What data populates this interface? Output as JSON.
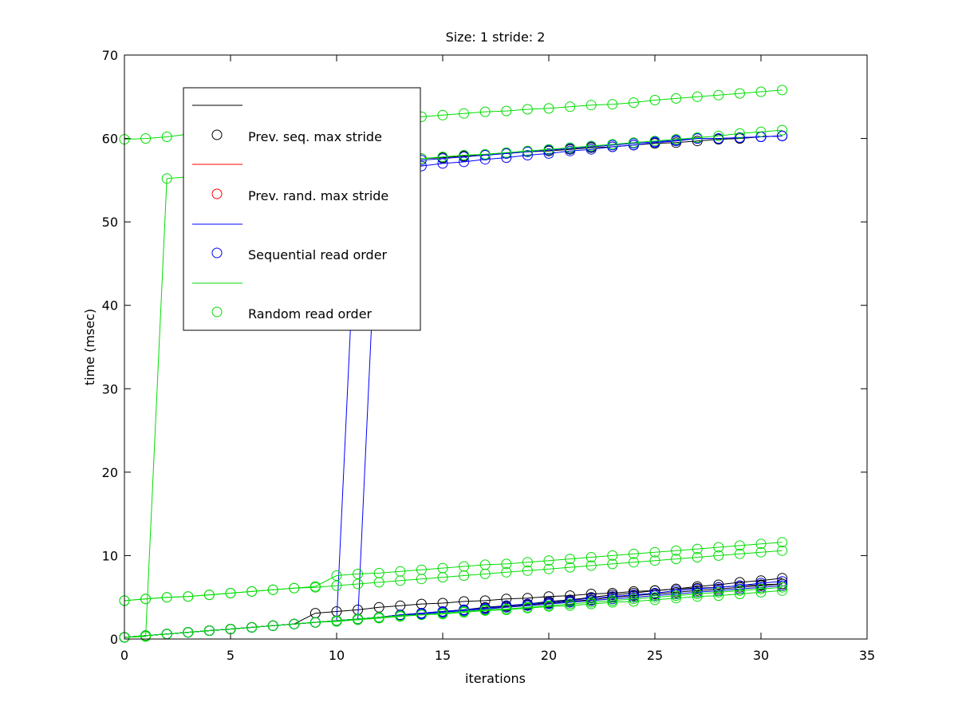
{
  "chart_data": {
    "type": "line",
    "title": "Size: 1 stride: 2",
    "xlabel": "iterations",
    "ylabel": "time (msec)",
    "xlim": [
      0,
      35
    ],
    "ylim": [
      0,
      70
    ],
    "xticks": [
      0,
      5,
      10,
      15,
      20,
      25,
      30,
      35
    ],
    "yticks": [
      0,
      10,
      20,
      30,
      40,
      50,
      60,
      70
    ],
    "grid": false,
    "legend_position": "upper-left",
    "legend": [
      {
        "kind": "line",
        "label": "",
        "color": "#000000"
      },
      {
        "kind": "marker",
        "label": "Prev. seq. max stride",
        "color": "#000000"
      },
      {
        "kind": "line",
        "label": "",
        "color": "#ff0000"
      },
      {
        "kind": "marker",
        "label": "Prev. rand. max stride",
        "color": "#ff0000"
      },
      {
        "kind": "line",
        "label": "",
        "color": "#0000ff"
      },
      {
        "kind": "marker",
        "label": "Sequential read order",
        "color": "#0000ff"
      },
      {
        "kind": "line",
        "label": "",
        "color": "#00dd00"
      },
      {
        "kind": "marker",
        "label": "Random read order",
        "color": "#00dd00"
      }
    ],
    "x": [
      0,
      1,
      2,
      3,
      4,
      5,
      6,
      7,
      8,
      9,
      10,
      11,
      12,
      13,
      14,
      15,
      16,
      17,
      18,
      19,
      20,
      21,
      22,
      23,
      24,
      25,
      26,
      27,
      28,
      29,
      30,
      31
    ],
    "series": [
      {
        "color": "#000000",
        "values": [
          0.2,
          0.4,
          0.6,
          0.8,
          1.0,
          1.2,
          1.4,
          1.6,
          1.8,
          2.0,
          2.2,
          2.4,
          2.6,
          2.9,
          3.1,
          3.3,
          3.5,
          3.8,
          4.0,
          4.2,
          4.5,
          4.7,
          5.0,
          5.3,
          5.5,
          5.8,
          6.0,
          6.3,
          6.5,
          6.8,
          7.0,
          7.3
        ]
      },
      {
        "color": "#000000",
        "values": [
          0.2,
          0.4,
          0.6,
          0.8,
          1.0,
          1.2,
          1.4,
          1.6,
          1.8,
          3.1,
          3.3,
          3.5,
          3.8,
          4.0,
          4.2,
          4.3,
          4.5,
          4.6,
          4.8,
          4.9,
          5.1,
          5.2,
          5.4,
          5.5,
          5.7,
          5.8,
          6.0,
          6.1,
          6.2,
          6.4,
          6.5,
          6.6
        ]
      },
      {
        "color": "#000000",
        "values": [
          0.2,
          0.4,
          0.6,
          0.8,
          1.0,
          1.2,
          1.4,
          1.6,
          1.8,
          2.0,
          2.2,
          2.4,
          2.6,
          2.9,
          3.1,
          3.3,
          3.5,
          3.7,
          3.9,
          4.1,
          4.3,
          4.5,
          4.7,
          5.0,
          5.2,
          5.4,
          5.6,
          5.8,
          6.0,
          6.2,
          6.4,
          6.6
        ]
      },
      {
        "color": "#000000",
        "values": [
          null,
          null,
          null,
          null,
          null,
          null,
          null,
          null,
          null,
          null,
          null,
          null,
          null,
          57.4,
          57.6,
          57.7,
          57.9,
          58.0,
          58.2,
          58.4,
          58.5,
          58.7,
          58.9,
          59.0,
          59.2,
          59.4,
          59.5,
          59.7,
          59.9,
          60.0,
          60.2,
          60.3
        ]
      },
      {
        "color": "#0000ff",
        "values": [
          0.2,
          0.4,
          0.6,
          0.8,
          1.0,
          1.2,
          1.4,
          1.6,
          1.8,
          2.0,
          2.2,
          2.4,
          2.6,
          2.9,
          3.1,
          3.3,
          3.5,
          3.7,
          4.0,
          4.2,
          4.4,
          4.6,
          4.9,
          5.1,
          5.3,
          5.5,
          5.8,
          6.0,
          6.2,
          6.4,
          6.7,
          6.9
        ]
      },
      {
        "color": "#0000ff",
        "values": [
          0.2,
          0.4,
          0.6,
          0.8,
          1.0,
          1.2,
          1.4,
          1.6,
          1.8,
          2.0,
          2.2,
          2.4,
          2.6,
          2.8,
          3.0,
          3.2,
          3.4,
          3.6,
          3.8,
          4.0,
          4.2,
          4.4,
          4.6,
          4.8,
          5.0,
          5.2,
          5.4,
          5.6,
          5.8,
          6.0,
          6.2,
          6.4
        ]
      },
      {
        "color": "#0000ff",
        "values": [
          0.2,
          0.4,
          0.6,
          0.8,
          1.0,
          1.2,
          1.4,
          1.6,
          1.8,
          2.0,
          2.2,
          2.4,
          57.0,
          57.2,
          57.4,
          57.6,
          57.8,
          58.0,
          58.2,
          58.4,
          58.6,
          58.8,
          59.0,
          59.2,
          59.4,
          59.6,
          59.8,
          60.0,
          60.0,
          60.1,
          60.2,
          60.3
        ]
      },
      {
        "color": "#0000ff",
        "values": [
          0.2,
          0.4,
          0.6,
          0.8,
          1.0,
          1.2,
          1.4,
          1.6,
          1.8,
          2.0,
          2.2,
          56.0,
          56.2,
          56.5,
          56.7,
          57.0,
          57.2,
          57.5,
          57.7,
          58.0,
          58.2,
          58.5,
          58.7,
          59.0,
          59.2,
          59.5,
          59.7,
          60.0,
          60.0,
          60.1,
          60.2,
          60.3
        ]
      },
      {
        "color": "#00dd00",
        "values": [
          59.9,
          60.0,
          60.2,
          60.5,
          60.8,
          61.1,
          61.4,
          61.7,
          62.0,
          62.3,
          62.5,
          62.7,
          62.8,
          62.9,
          62.6,
          62.8,
          63.0,
          63.2,
          63.3,
          63.5,
          63.6,
          63.8,
          64.0,
          64.1,
          64.3,
          64.6,
          64.8,
          65.0,
          65.2,
          65.4,
          65.6,
          65.8
        ]
      },
      {
        "color": "#00dd00",
        "values": [
          0.2,
          0.3,
          55.2,
          55.4,
          55.6,
          55.8,
          56.0,
          56.2,
          56.4,
          56.6,
          56.8,
          57.0,
          57.2,
          57.4,
          57.6,
          57.8,
          58.0,
          58.1,
          58.3,
          58.5,
          58.7,
          58.9,
          59.1,
          59.3,
          59.5,
          59.7,
          59.9,
          60.1,
          60.3,
          60.6,
          60.8,
          61.0
        ]
      },
      {
        "color": "#00dd00",
        "values": [
          4.6,
          4.8,
          5.0,
          5.1,
          5.3,
          5.5,
          5.7,
          5.9,
          6.1,
          6.3,
          7.6,
          7.8,
          7.9,
          8.1,
          8.3,
          8.5,
          8.7,
          8.9,
          9.0,
          9.2,
          9.4,
          9.6,
          9.8,
          10.0,
          10.2,
          10.4,
          10.6,
          10.8,
          11.0,
          11.2,
          11.4,
          11.6
        ]
      },
      {
        "color": "#00dd00",
        "values": [
          4.6,
          4.8,
          5.0,
          5.1,
          5.3,
          5.5,
          5.7,
          5.9,
          6.1,
          6.2,
          6.4,
          6.6,
          6.8,
          7.0,
          7.2,
          7.4,
          7.6,
          7.8,
          8.0,
          8.2,
          8.4,
          8.6,
          8.8,
          9.0,
          9.2,
          9.4,
          9.6,
          9.8,
          10.0,
          10.2,
          10.4,
          10.6
        ]
      },
      {
        "color": "#00dd00",
        "values": [
          0.2,
          0.4,
          0.6,
          0.8,
          1.0,
          1.2,
          1.4,
          1.6,
          1.8,
          2.0,
          2.2,
          2.4,
          2.6,
          2.8,
          2.9,
          3.1,
          3.3,
          3.5,
          3.6,
          3.8,
          4.0,
          4.2,
          4.4,
          4.6,
          4.8,
          5.0,
          5.2,
          5.4,
          5.6,
          5.8,
          6.0,
          6.2
        ]
      },
      {
        "color": "#00dd00",
        "values": [
          0.2,
          0.4,
          0.6,
          0.8,
          1.0,
          1.2,
          1.4,
          1.6,
          1.8,
          2.0,
          2.1,
          2.3,
          2.5,
          2.7,
          2.9,
          3.0,
          3.2,
          3.4,
          3.5,
          3.7,
          3.9,
          4.0,
          4.2,
          4.4,
          4.5,
          4.7,
          4.9,
          5.1,
          5.2,
          5.4,
          5.6,
          5.8
        ]
      }
    ]
  }
}
